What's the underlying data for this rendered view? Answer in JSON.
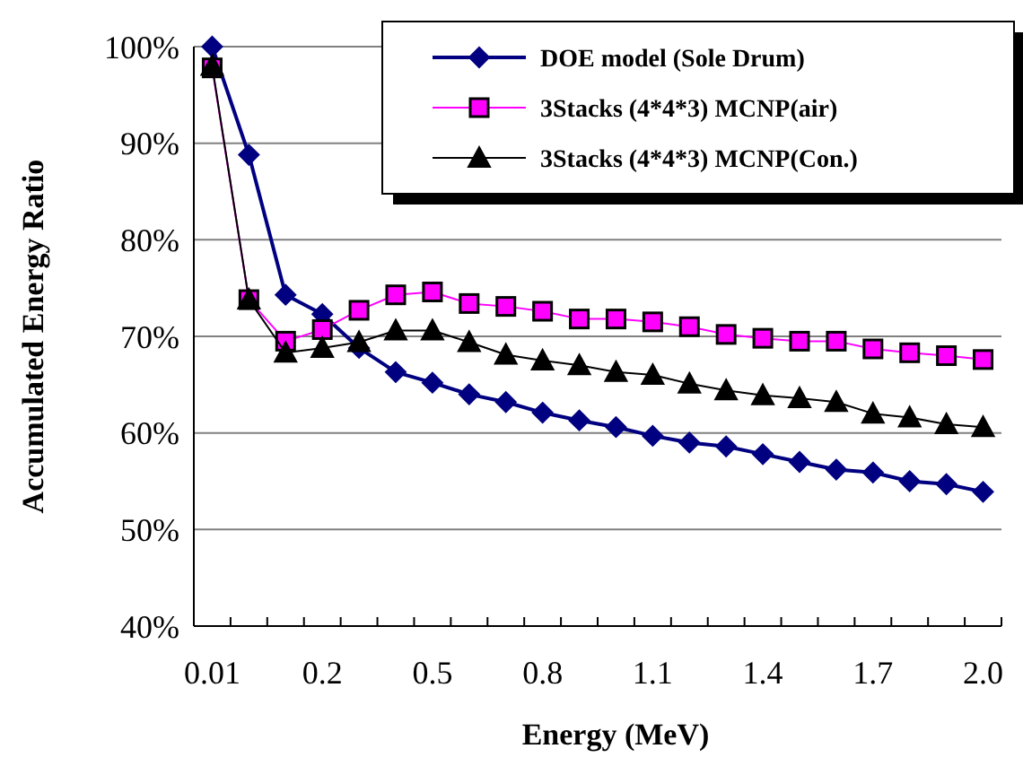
{
  "chart_data": {
    "type": "line",
    "xlabel": "Energy (MeV)",
    "ylabel": "Accumulated Energy Ratio",
    "categories": [
      "0.01",
      null,
      null,
      "0.2",
      null,
      null,
      "0.5",
      null,
      null,
      "0.8",
      null,
      null,
      "1.1",
      null,
      null,
      "1.4",
      null,
      null,
      "1.7",
      null,
      null,
      "2.0"
    ],
    "ylim": [
      40,
      100
    ],
    "yticks": [
      {
        "value": 40,
        "label": "40%"
      },
      {
        "value": 50,
        "label": "50%"
      },
      {
        "value": 60,
        "label": "60%"
      },
      {
        "value": 70,
        "label": "70%"
      },
      {
        "value": 80,
        "label": "80%"
      },
      {
        "value": 90,
        "label": "90%"
      },
      {
        "value": 100,
        "label": "100%"
      }
    ],
    "grid": "y",
    "legend": "top right",
    "series": [
      {
        "name": "DOE model (Sole Drum)",
        "color": "#000080",
        "marker": "diamond",
        "values": [
          100,
          88.8,
          74.3,
          72.3,
          68.8,
          66.3,
          65.2,
          64.0,
          63.2,
          62.1,
          61.3,
          60.6,
          59.7,
          59.0,
          58.6,
          57.8,
          57.0,
          56.2,
          55.9,
          55.0,
          54.7,
          53.9
        ]
      },
      {
        "name": "3Stacks (4*4*3) MCNP(air)",
        "color": "#ff00ff",
        "marker": "square",
        "values": [
          97.8,
          73.8,
          69.5,
          70.7,
          72.7,
          74.3,
          74.6,
          73.4,
          73.1,
          72.6,
          71.8,
          71.8,
          71.5,
          71.0,
          70.2,
          69.8,
          69.5,
          69.5,
          68.7,
          68.3,
          68.0,
          67.6
        ]
      },
      {
        "name": "3Stacks (4*4*3) MCNP(Con.)",
        "color": "#000000",
        "marker": "triangle",
        "values": [
          98,
          73.8,
          68.3,
          68.8,
          69.4,
          70.6,
          70.6,
          69.4,
          68.1,
          67.5,
          67.0,
          66.3,
          66.0,
          65.1,
          64.4,
          63.9,
          63.6,
          63.2,
          62.0,
          61.6,
          60.9,
          60.6
        ]
      }
    ]
  }
}
